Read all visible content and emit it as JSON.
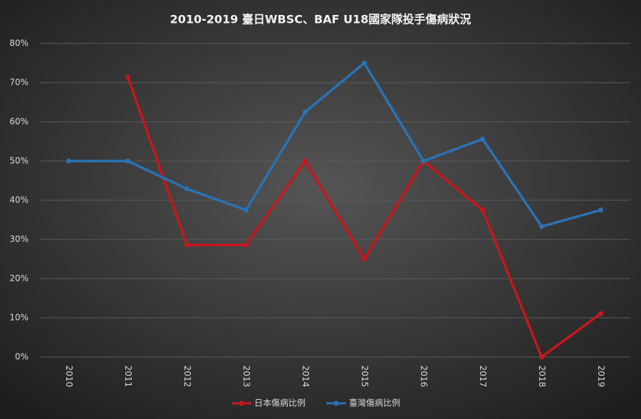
{
  "chart_data": {
    "type": "line",
    "title": "2010-2019 臺日WBSC、BAF U18國家隊投手傷病狀況",
    "categories": [
      "2010",
      "2011",
      "2012",
      "2013",
      "2014",
      "2015",
      "2016",
      "2017",
      "2018",
      "2019"
    ],
    "series": [
      {
        "name": "日本傷病比例",
        "color": "#c8161d",
        "values": [
          null,
          71.4,
          28.6,
          28.6,
          50,
          25,
          50,
          37.5,
          0,
          11.1
        ]
      },
      {
        "name": "臺灣傷病比例",
        "color": "#2a72b5",
        "values": [
          50,
          50,
          42.9,
          37.5,
          62.5,
          75,
          50,
          55.6,
          33.3,
          37.5
        ]
      }
    ],
    "ylim": [
      0,
      80
    ],
    "yticks": [
      {
        "value": 0,
        "label": "0%"
      },
      {
        "value": 10,
        "label": "10%"
      },
      {
        "value": 20,
        "label": "20%"
      },
      {
        "value": 30,
        "label": "30%"
      },
      {
        "value": 40,
        "label": "40%"
      },
      {
        "value": 50,
        "label": "50%"
      },
      {
        "value": 60,
        "label": "60%"
      },
      {
        "value": 70,
        "label": "70%"
      },
      {
        "value": 80,
        "label": "80%"
      }
    ],
    "grid": true,
    "legend": "bottom"
  }
}
